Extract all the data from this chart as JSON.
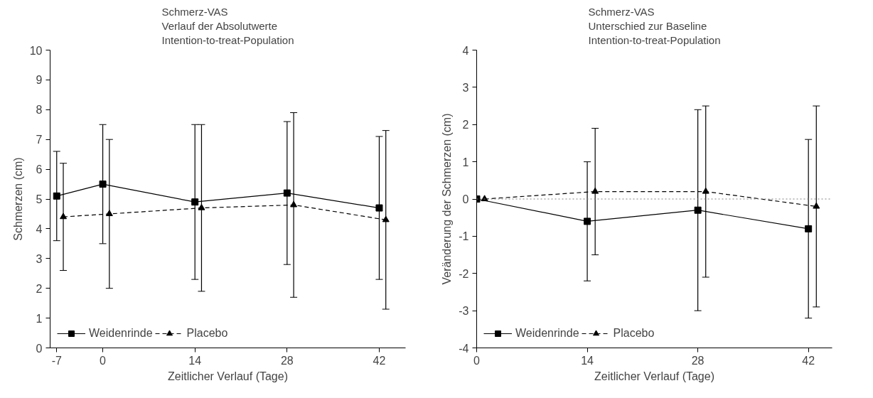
{
  "chart_data": [
    {
      "type": "line",
      "title": "Schmerz-VAS\nVerlauf der Absolutwerte\nIntention-to-treat-Population",
      "xlabel": "Zeitlicher Verlauf (Tage)",
      "ylabel": "Schmerzen (cm)",
      "xlim": [
        -8,
        46
      ],
      "xticks": [
        -7,
        0,
        14,
        28,
        42
      ],
      "ylim": [
        0,
        10
      ],
      "yticks": [
        0,
        1,
        2,
        3,
        4,
        5,
        6,
        7,
        8,
        9,
        10
      ],
      "grid": false,
      "legend": "bottom left",
      "series": [
        {
          "name": "Weidenrinde",
          "color": "#000000",
          "marker": "square",
          "line_style": "solid",
          "x": [
            -7,
            0,
            14,
            28,
            42
          ],
          "values": [
            5.1,
            5.5,
            4.9,
            5.2,
            4.7
          ],
          "errors": [
            [
              3.6,
              6.6
            ],
            [
              3.5,
              7.5
            ],
            [
              2.3,
              7.5
            ],
            [
              2.8,
              7.6
            ],
            [
              2.3,
              7.1
            ]
          ]
        },
        {
          "name": "Placebo",
          "color": "#000000",
          "marker": "triangle",
          "line_style": "dashed",
          "x": [
            -6,
            1,
            15,
            29,
            43
          ],
          "values": [
            4.4,
            4.5,
            4.7,
            4.8,
            4.3
          ],
          "errors": [
            [
              2.6,
              6.2
            ],
            [
              2.0,
              7.0
            ],
            [
              1.9,
              7.5
            ],
            [
              1.7,
              7.9
            ],
            [
              1.3,
              7.3
            ]
          ]
        }
      ]
    },
    {
      "type": "line",
      "title": "Schmerz-VAS\nUnterschied zur Baseline\nIntention-to-treat-Population",
      "xlabel": "Zeitlicher Verlauf (Tage)",
      "ylabel": "Veränderung der Schmerzen (cm)",
      "xlim": [
        0,
        45
      ],
      "xticks": [
        0,
        14,
        28,
        42
      ],
      "ylim": [
        -4,
        4
      ],
      "yticks": [
        -4,
        -3,
        -2,
        -1,
        0,
        1,
        2,
        3,
        4
      ],
      "grid": false,
      "legend": "bottom left",
      "ref_lines": [
        {
          "axis": "y",
          "value": 0,
          "color": "#808080",
          "line_style": "dotted"
        }
      ],
      "series": [
        {
          "name": "Weidenrinde",
          "color": "#000000",
          "marker": "square",
          "line_style": "solid",
          "x": [
            0,
            14,
            28,
            42
          ],
          "values": [
            0,
            -0.6,
            -0.3,
            -0.8
          ],
          "errors": [
            null,
            [
              -2.2,
              1.0
            ],
            [
              -3.0,
              2.4
            ],
            [
              -3.2,
              1.6
            ]
          ]
        },
        {
          "name": "Placebo",
          "color": "#000000",
          "marker": "triangle",
          "line_style": "dashed",
          "x": [
            1,
            15,
            29,
            43
          ],
          "values": [
            0,
            0.2,
            0.2,
            -0.2
          ],
          "errors": [
            null,
            [
              -1.5,
              1.9
            ],
            [
              -2.1,
              2.5
            ],
            [
              -2.9,
              2.5
            ]
          ]
        }
      ]
    }
  ]
}
